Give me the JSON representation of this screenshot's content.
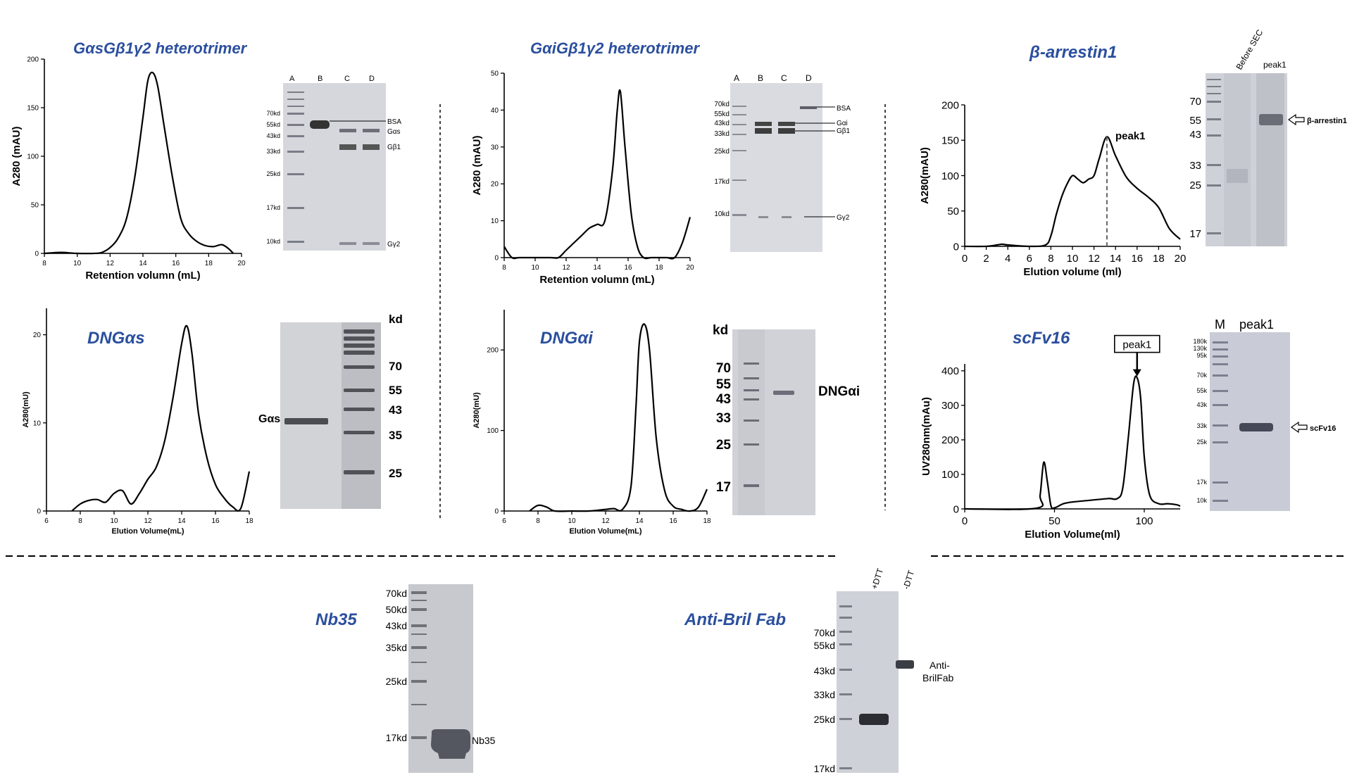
{
  "panels": {
    "gs_trimer": {
      "title": "GαsGβ1γ2 heterotrimer",
      "chart": {
        "type": "line",
        "x_ticks": [
          "8",
          "10",
          "12",
          "14",
          "16",
          "18",
          "20"
        ],
        "y_ticks": [
          "0",
          "50",
          "100",
          "150",
          "200"
        ],
        "xlabel": "Retention volumn (mL)",
        "ylabel": "A280 (mAU)",
        "x": [
          8,
          9,
          10,
          11,
          11.5,
          12,
          12.5,
          13,
          13.5,
          14,
          14.3,
          14.6,
          14.9,
          15.3,
          15.8,
          16.3,
          16.8,
          17.3,
          17.8,
          18.3,
          18.8,
          19.2,
          19.5
        ],
        "y": [
          0,
          1,
          0,
          0,
          1,
          6,
          16,
          36,
          78,
          140,
          178,
          186,
          172,
          130,
          78,
          36,
          20,
          12,
          8,
          7,
          9,
          5,
          0
        ]
      },
      "gel": {
        "lanes": [
          "A",
          "B",
          "C",
          "D"
        ],
        "markers": [
          "70kd",
          "55kd",
          "43kd",
          "33kd",
          "25kd",
          "17kd",
          "10kd"
        ],
        "bands": [
          "BSA",
          "Gαs",
          "Gβ1",
          "Gγ2"
        ]
      }
    },
    "gi_trimer": {
      "title": "GαiGβ1γ2 heterotrimer",
      "chart": {
        "type": "line",
        "x_ticks": [
          "8",
          "10",
          "12",
          "14",
          "16",
          "18",
          "20"
        ],
        "y_ticks": [
          "0",
          "10",
          "20",
          "30",
          "40",
          "50"
        ],
        "xlabel": "Retention volumn (mL)",
        "ylabel": "A280 (mAU)",
        "x": [
          8,
          8.5,
          9,
          10,
          11,
          11.5,
          12,
          12.5,
          13,
          13.5,
          14,
          14.5,
          15,
          15.3,
          15.5,
          15.8,
          16.2,
          16.6,
          17,
          17.5,
          18,
          18.5,
          19,
          19.5,
          20
        ],
        "y": [
          3,
          0,
          0,
          0,
          0,
          0,
          2,
          4,
          6,
          8,
          9,
          10,
          24,
          40,
          45,
          30,
          12,
          3,
          0,
          0,
          0,
          0,
          0,
          4,
          11
        ]
      },
      "gel": {
        "lanes": [
          "A",
          "B",
          "C",
          "D"
        ],
        "markers": [
          "70kd",
          "55kd",
          "43kd",
          "33kd",
          "25kd",
          "17kd",
          "10kd"
        ],
        "bands": [
          "BSA",
          "Gαi",
          "Gβ1",
          "Gγ2"
        ]
      }
    },
    "arrestin": {
      "title": "β-arrestin1",
      "chart": {
        "type": "line",
        "x_ticks": [
          "0",
          "2",
          "4",
          "6",
          "8",
          "10",
          "12",
          "14",
          "16",
          "18",
          "20"
        ],
        "y_ticks": [
          "0",
          "50",
          "100",
          "150",
          "200"
        ],
        "xlabel": "Elution volume (ml)",
        "ylabel": "A280(mAU)",
        "annotation": "peak1",
        "x": [
          0,
          2,
          3,
          3.5,
          4,
          6,
          7.5,
          8,
          8.5,
          9,
          9.5,
          10,
          10.5,
          11,
          11.5,
          12,
          12.5,
          13.2,
          14,
          15,
          16,
          17,
          18,
          19,
          20
        ],
        "y": [
          0,
          0,
          2,
          3,
          2,
          0,
          2,
          15,
          45,
          70,
          88,
          100,
          95,
          90,
          95,
          100,
          125,
          155,
          128,
          98,
          82,
          70,
          55,
          25,
          10
        ]
      },
      "gel": {
        "lanes": [
          "Before SEC",
          "peak1"
        ],
        "markers": [
          "70",
          "55",
          "43",
          "33",
          "25",
          "17"
        ],
        "bands": [
          "β-arrestin1"
        ]
      }
    },
    "dngas": {
      "title": "DNGαs",
      "chart": {
        "type": "line",
        "x_ticks": [
          "6",
          "8",
          "10",
          "12",
          "14",
          "16",
          "18"
        ],
        "y_ticks": [
          "0",
          "10",
          "20"
        ],
        "xlabel": "Elution Volume(mL)",
        "ylabel": "A280(mU)",
        "x": [
          7.5,
          8,
          8.5,
          9,
          9.5,
          10,
          10.5,
          11,
          11.5,
          12,
          12.5,
          13,
          13.5,
          14,
          14.3,
          14.6,
          15,
          15.5,
          16,
          16.5,
          17,
          17.5,
          18
        ],
        "y": [
          0,
          0.8,
          1.2,
          1.3,
          1,
          2,
          2.3,
          0.8,
          2,
          3.6,
          5,
          8,
          13,
          19,
          21,
          18,
          11,
          6,
          3,
          1.5,
          0.5,
          0.3,
          4.5
        ]
      },
      "gel": {
        "markers_header": "kd",
        "markers": [
          "70",
          "55",
          "43",
          "35",
          "25"
        ],
        "bands": [
          "Gαs"
        ]
      }
    },
    "dngai": {
      "title": "DNGαi",
      "chart": {
        "type": "line",
        "x_ticks": [
          "6",
          "8",
          "10",
          "12",
          "14",
          "16",
          "18"
        ],
        "y_ticks": [
          "0",
          "100",
          "200"
        ],
        "xlabel": "Elution Volume(mL)",
        "ylabel": "A280(mU)",
        "x": [
          7.5,
          8,
          8.5,
          9,
          10,
          11,
          12,
          12.5,
          13,
          13.5,
          13.8,
          14,
          14.3,
          14.6,
          15,
          15.5,
          16,
          16.5,
          17,
          17.5,
          18
        ],
        "y": [
          0,
          7,
          5,
          0,
          0,
          0,
          2,
          3,
          2,
          30,
          130,
          210,
          232,
          200,
          90,
          25,
          6,
          2,
          0,
          5,
          27
        ]
      },
      "gel": {
        "markers_header": "kd",
        "markers": [
          "70",
          "55",
          "43",
          "33",
          "25",
          "17"
        ],
        "bands": [
          "DNGαi"
        ]
      }
    },
    "scfv16": {
      "title": "scFv16",
      "chart": {
        "type": "line",
        "x_ticks": [
          "0",
          "50",
          "100"
        ],
        "y_ticks": [
          "0",
          "100",
          "200",
          "300",
          "400"
        ],
        "xlabel": "Elution Volume(ml)",
        "ylabel": "UV280nm(mAu)",
        "annotation": "peak1",
        "x": [
          0,
          40,
          42,
          44,
          46,
          48,
          50,
          55,
          60,
          70,
          80,
          85,
          88,
          91,
          94,
          96,
          98,
          100,
          103,
          108,
          113,
          118,
          120
        ],
        "y": [
          0,
          2,
          40,
          135,
          80,
          10,
          3,
          15,
          20,
          25,
          30,
          30,
          60,
          200,
          360,
          380,
          320,
          150,
          40,
          15,
          15,
          12,
          8
        ]
      },
      "gel": {
        "lanes": [
          "M",
          "peak1"
        ],
        "markers": [
          "180k",
          "130k",
          "95k",
          "70k",
          "55k",
          "43k",
          "33k",
          "25k",
          "17k",
          "10k"
        ],
        "bands": [
          "scFv16"
        ]
      }
    },
    "nb35": {
      "title": "Nb35",
      "gel": {
        "markers": [
          "70kd",
          "50kd",
          "43kd",
          "35kd",
          "25kd",
          "17kd"
        ],
        "bands": [
          "Nb35"
        ]
      }
    },
    "fab": {
      "title": "Anti-Bril Fab",
      "gel": {
        "lanes": [
          "+DTT",
          "-DTT"
        ],
        "markers": [
          "70kd",
          "55kd",
          "43kd",
          "33kd",
          "25kd",
          "17kd"
        ],
        "bands": [
          "Anti-",
          "BrilFab"
        ]
      }
    }
  }
}
